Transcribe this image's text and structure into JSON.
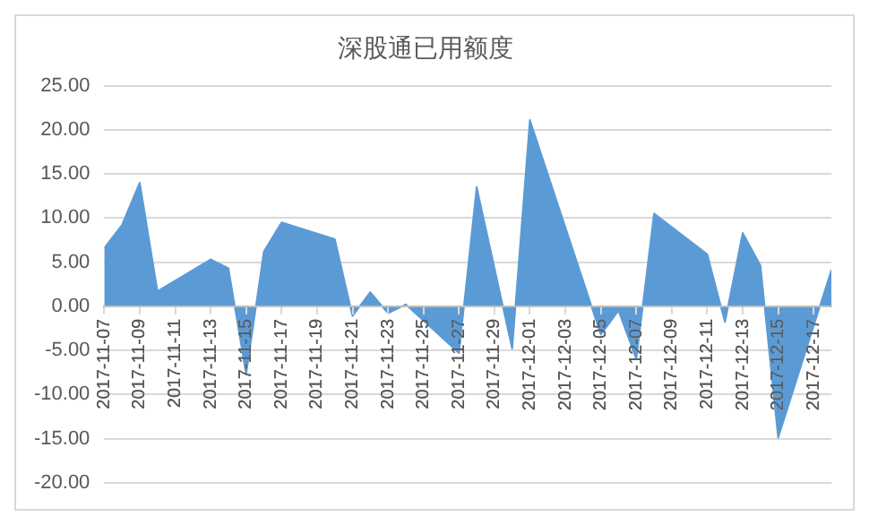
{
  "chart_data": {
    "type": "area",
    "title": "深股通已用额度",
    "x": [
      "2017-11-07",
      "2017-11-08",
      "2017-11-09",
      "2017-11-10",
      "2017-11-13",
      "2017-11-14",
      "2017-11-15",
      "2017-11-16",
      "2017-11-17",
      "2017-11-20",
      "2017-11-21",
      "2017-11-22",
      "2017-11-23",
      "2017-11-24",
      "2017-11-27",
      "2017-11-28",
      "2017-11-30",
      "2017-12-01",
      "2017-12-05",
      "2017-12-06",
      "2017-12-07",
      "2017-12-08",
      "2017-12-11",
      "2017-12-12",
      "2017-12-13",
      "2017-12-14",
      "2017-12-15",
      "2017-12-18"
    ],
    "series": [
      {
        "color": "#5b9bd5",
        "values": [
          6.6,
          9.2,
          14.0,
          1.7,
          5.3,
          4.3,
          -7.7,
          6.2,
          9.5,
          7.6,
          -1.1,
          1.6,
          -0.8,
          0.2,
          -5.3,
          13.5,
          -4.8,
          21.1,
          -3.2,
          -0.5,
          -6.0,
          10.5,
          5.9,
          -1.8,
          8.3,
          4.6,
          -14.9,
          4.1
        ]
      }
    ],
    "xlim": [
      "2017-11-07",
      "2017-12-18"
    ],
    "xticks": [
      "2017-11-07",
      "2017-11-09",
      "2017-11-11",
      "2017-11-13",
      "2017-11-15",
      "2017-11-17",
      "2017-11-19",
      "2017-11-21",
      "2017-11-23",
      "2017-11-25",
      "2017-11-27",
      "2017-11-29",
      "2017-12-01",
      "2017-12-03",
      "2017-12-05",
      "2017-12-07",
      "2017-12-09",
      "2017-12-11",
      "2017-12-13",
      "2017-12-15",
      "2017-12-17"
    ],
    "ylim": [
      -20,
      25
    ],
    "yticks": [
      {
        "value": -20,
        "label": "-20.00"
      },
      {
        "value": -15,
        "label": "-15.00"
      },
      {
        "value": -10,
        "label": "-10.00"
      },
      {
        "value": -5,
        "label": "-5.00"
      },
      {
        "value": 0,
        "label": "0.00"
      },
      {
        "value": 5,
        "label": "5.00"
      },
      {
        "value": 10,
        "label": "10.00"
      },
      {
        "value": 15,
        "label": "15.00"
      },
      {
        "value": 20,
        "label": "20.00"
      },
      {
        "value": 25,
        "label": "25.00"
      }
    ],
    "grid": "y",
    "legend": false
  }
}
